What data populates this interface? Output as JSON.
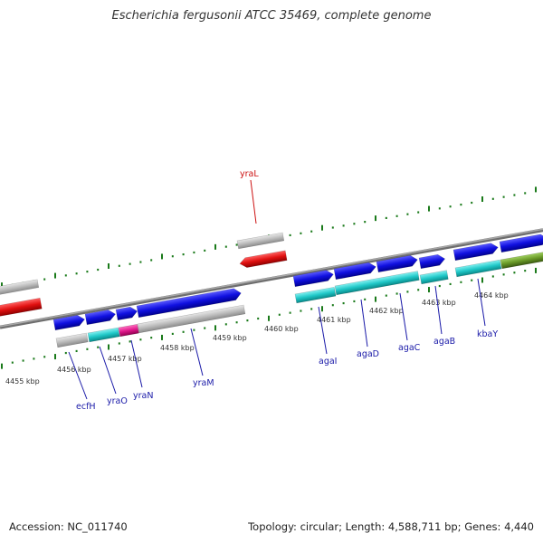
{
  "title": "Escherichia fergusonii ATCC 35469, complete genome",
  "footer": {
    "accession": "Accession: NC_011740",
    "topology": "Topology: circular; Length: 4,588,711 bp; Genes: 4,440"
  },
  "colors": {
    "forward_cds": "#1010e0",
    "reverse_cds": "#e01010",
    "gene_gray": "#bfbfbf",
    "cyan": "#20c8c8",
    "magenta": "#e0188c",
    "olive": "#6a9a28",
    "tick": "#1a7a1a",
    "label_blue": "#1a1aa8",
    "label_red": "#cc1010"
  },
  "scale_labels": [
    "4455 kbp",
    "4456 kbp",
    "4457 kbp",
    "4458 kbp",
    "4459 kbp",
    "4460 kbp",
    "4461 kbp",
    "4462 kbp",
    "4463 kbp",
    "4464 kbp"
  ],
  "genes": [
    {
      "name": "yraL",
      "strand": "reverse"
    },
    {
      "name": "ecfH",
      "strand": "forward"
    },
    {
      "name": "yraO",
      "strand": "forward"
    },
    {
      "name": "yraN",
      "strand": "forward"
    },
    {
      "name": "yraM",
      "strand": "forward"
    },
    {
      "name": "agaI",
      "strand": "forward"
    },
    {
      "name": "agaD",
      "strand": "forward"
    },
    {
      "name": "agaC",
      "strand": "forward"
    },
    {
      "name": "agaB",
      "strand": "forward"
    },
    {
      "name": "kbaY",
      "strand": "forward"
    }
  ]
}
